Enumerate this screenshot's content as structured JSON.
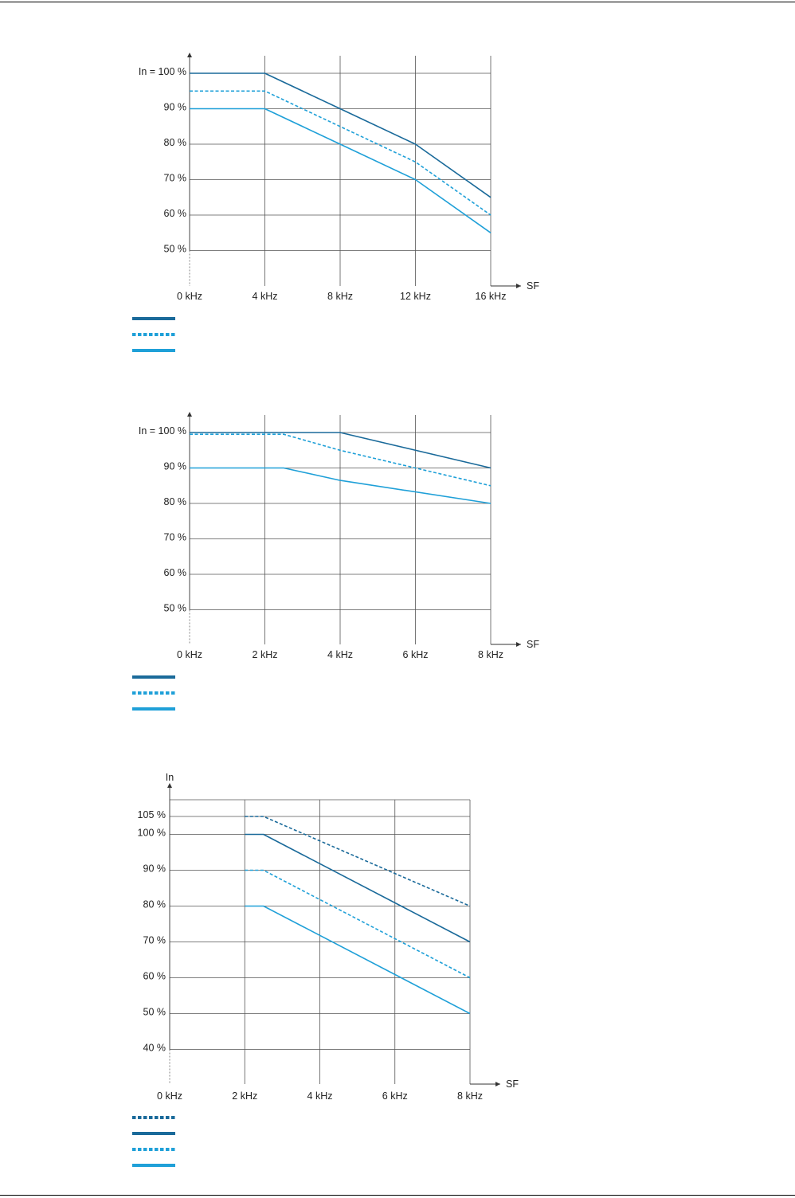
{
  "colors": {
    "dark": "#1a6a9a",
    "light": "#1fa0d8",
    "grid": "#555555",
    "text": "#222222"
  },
  "chart_data": [
    {
      "type": "line",
      "y_axis_label": "",
      "x_axis_label": "SF",
      "x_ticks": [
        0,
        4,
        8,
        12,
        16
      ],
      "x_tick_labels": [
        "0 kHz",
        "4 kHz",
        "8 kHz",
        "12 kHz",
        "16 kHz"
      ],
      "y_ticks": [
        100,
        90,
        80,
        70,
        60,
        50
      ],
      "y_tick_labels": [
        "In = 100 %",
        "90 %",
        "80 %",
        "70 %",
        "60 %",
        "50 %"
      ],
      "xlim": [
        0,
        16
      ],
      "ylim": [
        41,
        100
      ],
      "series": [
        {
          "style": "solid",
          "color": "dark",
          "x": [
            0,
            4,
            8,
            12,
            16
          ],
          "y": [
            100,
            100,
            90,
            80,
            65
          ]
        },
        {
          "style": "dashed",
          "color": "light",
          "x": [
            0,
            4,
            8,
            12,
            16
          ],
          "y": [
            95,
            95,
            85,
            75,
            60
          ]
        },
        {
          "style": "solid",
          "color": "light",
          "x": [
            0,
            4,
            8,
            12,
            16
          ],
          "y": [
            90,
            90,
            80,
            70,
            55
          ]
        }
      ]
    },
    {
      "type": "line",
      "y_axis_label": "",
      "x_axis_label": "SF",
      "x_ticks": [
        0,
        2,
        4,
        6,
        8
      ],
      "x_tick_labels": [
        "0 kHz",
        "2 kHz",
        "4 kHz",
        "6 kHz",
        "8 kHz"
      ],
      "y_ticks": [
        100,
        90,
        80,
        70,
        60,
        50
      ],
      "y_tick_labels": [
        "In = 100 %",
        "90 %",
        "80 %",
        "70 %",
        "60 %",
        "50 %"
      ],
      "xlim": [
        0,
        8
      ],
      "ylim": [
        41,
        100
      ],
      "series": [
        {
          "style": "solid",
          "color": "dark",
          "x": [
            0,
            4,
            8
          ],
          "y": [
            100,
            100,
            90
          ]
        },
        {
          "style": "dashed",
          "color": "light",
          "x": [
            0,
            2.5,
            4,
            8
          ],
          "y": [
            99.5,
            99.5,
            95,
            85
          ]
        },
        {
          "style": "solid",
          "color": "light",
          "x": [
            0,
            2.5,
            4,
            8
          ],
          "y": [
            90,
            90,
            86.5,
            80
          ]
        }
      ]
    },
    {
      "type": "line",
      "y_axis_label": "In",
      "x_axis_label": "SF",
      "x_ticks": [
        0,
        2,
        4,
        6,
        8
      ],
      "x_tick_labels": [
        "0 kHz",
        "2 kHz",
        "4 kHz",
        "6 kHz",
        "8 kHz"
      ],
      "y_ticks": [
        105,
        100,
        90,
        80,
        70,
        60,
        50,
        40
      ],
      "y_tick_labels": [
        "105 %",
        "100 %",
        "90 %",
        "80 %",
        "70 %",
        "60 %",
        "50 %",
        "40 %"
      ],
      "xlim": [
        0,
        8
      ],
      "ylim": [
        30,
        110
      ],
      "series": [
        {
          "style": "dashed",
          "color": "dark",
          "x": [
            2,
            2.5,
            8
          ],
          "y": [
            105,
            105,
            80
          ]
        },
        {
          "style": "solid",
          "color": "dark",
          "x": [
            2,
            2.5,
            8
          ],
          "y": [
            100,
            100,
            70
          ]
        },
        {
          "style": "dashed",
          "color": "light",
          "x": [
            2,
            2.5,
            8
          ],
          "y": [
            90,
            90,
            60
          ]
        },
        {
          "style": "solid",
          "color": "light",
          "x": [
            2,
            2.5,
            8
          ],
          "y": [
            80,
            80,
            50
          ]
        }
      ]
    }
  ]
}
